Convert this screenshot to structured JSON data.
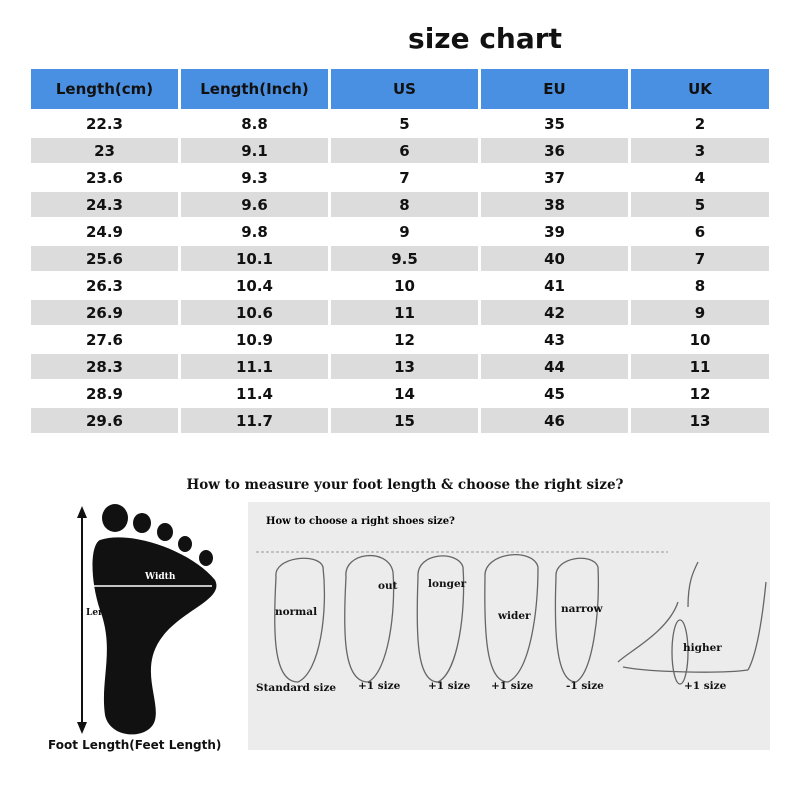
{
  "title": "size chart",
  "table": {
    "headers": [
      "Length(cm)",
      "Length(Inch)",
      "US",
      "EU",
      "UK"
    ],
    "rows": [
      [
        "22.3",
        "8.8",
        "5",
        "35",
        "2"
      ],
      [
        "23",
        "9.1",
        "6",
        "36",
        "3"
      ],
      [
        "23.6",
        "9.3",
        "7",
        "37",
        "4"
      ],
      [
        "24.3",
        "9.6",
        "8",
        "38",
        "5"
      ],
      [
        "24.9",
        "9.8",
        "9",
        "39",
        "6"
      ],
      [
        "25.6",
        "10.1",
        "9.5",
        "40",
        "7"
      ],
      [
        "26.3",
        "10.4",
        "10",
        "41",
        "8"
      ],
      [
        "26.9",
        "10.6",
        "11",
        "42",
        "9"
      ],
      [
        "27.6",
        "10.9",
        "12",
        "43",
        "10"
      ],
      [
        "28.3",
        "11.1",
        "13",
        "44",
        "11"
      ],
      [
        "28.9",
        "11.4",
        "14",
        "45",
        "12"
      ],
      [
        "29.6",
        "11.7",
        "15",
        "46",
        "13"
      ]
    ]
  },
  "colors": {
    "header": "#4a90e2",
    "stripe": "#dcdcdc"
  },
  "measure_title": "How to measure your foot length & choose the right size?",
  "foot_diagram": {
    "width_label": "Width",
    "length_label": "Length",
    "caption": "Foot Length(Feet Length)"
  },
  "choose": {
    "title": "How to choose a right shoes size?",
    "feet": [
      {
        "label": "normal",
        "size": "Standard size"
      },
      {
        "label": "out",
        "size": "+1 size"
      },
      {
        "label": "longer",
        "size": "+1 size"
      },
      {
        "label": "wider",
        "size": "+1 size"
      },
      {
        "label": "narrow",
        "size": "-1 size"
      },
      {
        "label": "higher",
        "size": "+1 size"
      }
    ]
  }
}
